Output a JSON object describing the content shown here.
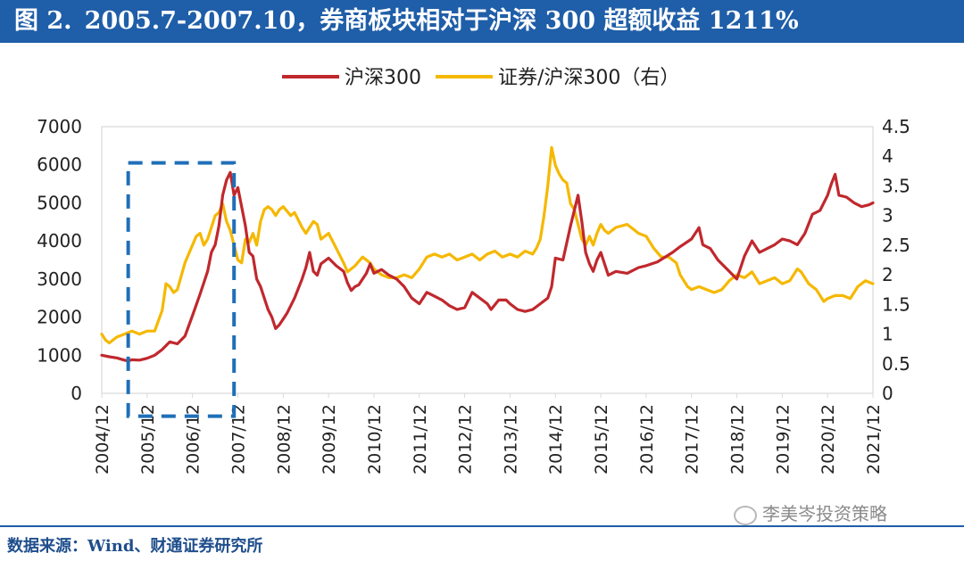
{
  "header": {
    "figure_label": "图 2.",
    "title": "2005.7-2007.10，券商板块相对于沪深 300 超额收益 1211%"
  },
  "source": "数据来源：Wind、财通证券研究所",
  "watermark": "李美岑投资策略",
  "watermark_icon": "wechat-icon",
  "colors": {
    "title_bg": "#1f5ea8",
    "series_hs300": "#c0282d",
    "series_ratio": "#f5b800",
    "highlight_box": "#1f6fb8",
    "axis": "#d9d9d9",
    "text": "#222222"
  },
  "chart_data": {
    "type": "line",
    "x_tick_labels": [
      "2004/12",
      "2005/12",
      "2006/12",
      "2007/12",
      "2008/12",
      "2009/12",
      "2010/12",
      "2011/12",
      "2012/12",
      "2013/12",
      "2014/12",
      "2015/12",
      "2016/12",
      "2017/12",
      "2018/12",
      "2019/12",
      "2020/12",
      "2021/12"
    ],
    "x_range": [
      2004.917,
      2021.917
    ],
    "y_left": {
      "ticks": [
        0,
        1000,
        2000,
        3000,
        4000,
        5000,
        6000,
        7000
      ],
      "tick_labels": [
        "0",
        "1000",
        "2000",
        "3000",
        "4000",
        "5000",
        "6000",
        "7000"
      ],
      "range": [
        0,
        7000
      ]
    },
    "y_right": {
      "ticks": [
        0,
        0.5,
        1,
        1.5,
        2,
        2.5,
        3,
        3.5,
        4,
        4.5
      ],
      "tick_labels": [
        "0",
        "0.5",
        "1",
        "1.5",
        "2",
        "2.5",
        "3",
        "3.5",
        "4",
        "4.5"
      ],
      "range": [
        0,
        4.5
      ]
    },
    "legend_position": "top-center",
    "grid": false,
    "highlight_region": {
      "x": [
        2005.5,
        2007.833
      ],
      "y_left": [
        -600,
        6050
      ]
    },
    "series": [
      {
        "name": "沪深300",
        "axis": "left",
        "points": [
          [
            2004.917,
            1000
          ],
          [
            2005.083,
            960
          ],
          [
            2005.25,
            930
          ],
          [
            2005.417,
            870
          ],
          [
            2005.5,
            850
          ],
          [
            2005.583,
            880
          ],
          [
            2005.75,
            870
          ],
          [
            2005.917,
            920
          ],
          [
            2006.083,
            1000
          ],
          [
            2006.25,
            1150
          ],
          [
            2006.417,
            1350
          ],
          [
            2006.583,
            1300
          ],
          [
            2006.75,
            1500
          ],
          [
            2006.917,
            2040
          ],
          [
            2007.083,
            2600
          ],
          [
            2007.25,
            3200
          ],
          [
            2007.333,
            3700
          ],
          [
            2007.417,
            3900
          ],
          [
            2007.5,
            4400
          ],
          [
            2007.583,
            5200
          ],
          [
            2007.667,
            5600
          ],
          [
            2007.75,
            5800
          ],
          [
            2007.833,
            5200
          ],
          [
            2007.917,
            5400
          ],
          [
            2008.0,
            4900
          ],
          [
            2008.083,
            4400
          ],
          [
            2008.167,
            3700
          ],
          [
            2008.25,
            3600
          ],
          [
            2008.333,
            3000
          ],
          [
            2008.417,
            2800
          ],
          [
            2008.5,
            2500
          ],
          [
            2008.583,
            2200
          ],
          [
            2008.667,
            2000
          ],
          [
            2008.75,
            1700
          ],
          [
            2008.833,
            1800
          ],
          [
            2008.917,
            1950
          ],
          [
            2009.0,
            2100
          ],
          [
            2009.167,
            2500
          ],
          [
            2009.333,
            3000
          ],
          [
            2009.417,
            3300
          ],
          [
            2009.5,
            3700
          ],
          [
            2009.583,
            3200
          ],
          [
            2009.667,
            3100
          ],
          [
            2009.75,
            3400
          ],
          [
            2009.917,
            3550
          ],
          [
            2010.083,
            3350
          ],
          [
            2010.25,
            3200
          ],
          [
            2010.333,
            2900
          ],
          [
            2010.417,
            2700
          ],
          [
            2010.5,
            2800
          ],
          [
            2010.583,
            2850
          ],
          [
            2010.75,
            3150
          ],
          [
            2010.833,
            3400
          ],
          [
            2010.917,
            3150
          ],
          [
            2011.083,
            3250
          ],
          [
            2011.25,
            3100
          ],
          [
            2011.417,
            3000
          ],
          [
            2011.583,
            2800
          ],
          [
            2011.75,
            2500
          ],
          [
            2011.917,
            2350
          ],
          [
            2012.083,
            2650
          ],
          [
            2012.25,
            2550
          ],
          [
            2012.417,
            2450
          ],
          [
            2012.583,
            2300
          ],
          [
            2012.75,
            2200
          ],
          [
            2012.917,
            2250
          ],
          [
            2013.083,
            2650
          ],
          [
            2013.25,
            2500
          ],
          [
            2013.417,
            2350
          ],
          [
            2013.5,
            2200
          ],
          [
            2013.667,
            2450
          ],
          [
            2013.833,
            2450
          ],
          [
            2013.917,
            2350
          ],
          [
            2014.083,
            2200
          ],
          [
            2014.25,
            2150
          ],
          [
            2014.417,
            2200
          ],
          [
            2014.583,
            2350
          ],
          [
            2014.75,
            2500
          ],
          [
            2014.833,
            2800
          ],
          [
            2014.917,
            3550
          ],
          [
            2015.083,
            3500
          ],
          [
            2015.25,
            4400
          ],
          [
            2015.417,
            5200
          ],
          [
            2015.5,
            4500
          ],
          [
            2015.583,
            3700
          ],
          [
            2015.667,
            3400
          ],
          [
            2015.75,
            3200
          ],
          [
            2015.833,
            3500
          ],
          [
            2015.917,
            3700
          ],
          [
            2016.083,
            3100
          ],
          [
            2016.25,
            3200
          ],
          [
            2016.5,
            3150
          ],
          [
            2016.75,
            3300
          ],
          [
            2016.917,
            3350
          ],
          [
            2017.167,
            3450
          ],
          [
            2017.5,
            3700
          ],
          [
            2017.667,
            3850
          ],
          [
            2017.917,
            4050
          ],
          [
            2018.083,
            4350
          ],
          [
            2018.167,
            3900
          ],
          [
            2018.333,
            3800
          ],
          [
            2018.5,
            3500
          ],
          [
            2018.75,
            3200
          ],
          [
            2018.917,
            3000
          ],
          [
            2019.083,
            3600
          ],
          [
            2019.25,
            4000
          ],
          [
            2019.417,
            3700
          ],
          [
            2019.583,
            3800
          ],
          [
            2019.75,
            3900
          ],
          [
            2019.917,
            4050
          ],
          [
            2020.083,
            4000
          ],
          [
            2020.25,
            3900
          ],
          [
            2020.417,
            4200
          ],
          [
            2020.583,
            4700
          ],
          [
            2020.75,
            4800
          ],
          [
            2020.917,
            5200
          ],
          [
            2021.0,
            5500
          ],
          [
            2021.083,
            5750
          ],
          [
            2021.167,
            5200
          ],
          [
            2021.333,
            5150
          ],
          [
            2021.5,
            5000
          ],
          [
            2021.667,
            4900
          ],
          [
            2021.833,
            4950
          ],
          [
            2021.917,
            5000
          ]
        ]
      },
      {
        "name": "证券/沪深300（右）",
        "axis": "right",
        "points": [
          [
            2004.917,
            1.0
          ],
          [
            2005.0,
            0.9
          ],
          [
            2005.083,
            0.85
          ],
          [
            2005.25,
            0.95
          ],
          [
            2005.417,
            1.0
          ],
          [
            2005.583,
            1.05
          ],
          [
            2005.75,
            1.0
          ],
          [
            2005.917,
            1.05
          ],
          [
            2006.083,
            1.05
          ],
          [
            2006.25,
            1.4
          ],
          [
            2006.333,
            1.85
          ],
          [
            2006.417,
            1.8
          ],
          [
            2006.5,
            1.7
          ],
          [
            2006.583,
            1.75
          ],
          [
            2006.75,
            2.2
          ],
          [
            2006.917,
            2.5
          ],
          [
            2007.0,
            2.65
          ],
          [
            2007.083,
            2.7
          ],
          [
            2007.167,
            2.5
          ],
          [
            2007.25,
            2.6
          ],
          [
            2007.333,
            2.8
          ],
          [
            2007.417,
            3.0
          ],
          [
            2007.5,
            3.05
          ],
          [
            2007.583,
            3.2
          ],
          [
            2007.667,
            2.9
          ],
          [
            2007.75,
            2.75
          ],
          [
            2007.833,
            2.5
          ],
          [
            2007.917,
            2.25
          ],
          [
            2008.0,
            2.2
          ],
          [
            2008.083,
            2.6
          ],
          [
            2008.167,
            2.55
          ],
          [
            2008.25,
            2.7
          ],
          [
            2008.333,
            2.5
          ],
          [
            2008.417,
            2.9
          ],
          [
            2008.5,
            3.1
          ],
          [
            2008.583,
            3.15
          ],
          [
            2008.667,
            3.1
          ],
          [
            2008.75,
            3.0
          ],
          [
            2008.833,
            3.1
          ],
          [
            2008.917,
            3.15
          ],
          [
            2009.083,
            3.0
          ],
          [
            2009.167,
            3.05
          ],
          [
            2009.333,
            2.8
          ],
          [
            2009.417,
            2.7
          ],
          [
            2009.5,
            2.8
          ],
          [
            2009.583,
            2.9
          ],
          [
            2009.667,
            2.85
          ],
          [
            2009.75,
            2.6
          ],
          [
            2009.917,
            2.7
          ],
          [
            2010.083,
            2.45
          ],
          [
            2010.25,
            2.2
          ],
          [
            2010.333,
            2.05
          ],
          [
            2010.5,
            2.15
          ],
          [
            2010.667,
            2.3
          ],
          [
            2010.833,
            2.2
          ],
          [
            2010.917,
            2.1
          ],
          [
            2011.083,
            2.0
          ],
          [
            2011.25,
            1.95
          ],
          [
            2011.417,
            1.95
          ],
          [
            2011.583,
            2.0
          ],
          [
            2011.75,
            1.95
          ],
          [
            2011.917,
            2.1
          ],
          [
            2012.083,
            2.3
          ],
          [
            2012.25,
            2.35
          ],
          [
            2012.417,
            2.3
          ],
          [
            2012.583,
            2.35
          ],
          [
            2012.75,
            2.25
          ],
          [
            2012.917,
            2.3
          ],
          [
            2013.083,
            2.35
          ],
          [
            2013.25,
            2.25
          ],
          [
            2013.417,
            2.35
          ],
          [
            2013.583,
            2.4
          ],
          [
            2013.75,
            2.3
          ],
          [
            2013.917,
            2.35
          ],
          [
            2014.083,
            2.3
          ],
          [
            2014.25,
            2.4
          ],
          [
            2014.417,
            2.35
          ],
          [
            2014.5,
            2.45
          ],
          [
            2014.583,
            2.6
          ],
          [
            2014.667,
            3.0
          ],
          [
            2014.75,
            3.5
          ],
          [
            2014.833,
            4.15
          ],
          [
            2014.917,
            3.85
          ],
          [
            2015.0,
            3.7
          ],
          [
            2015.083,
            3.6
          ],
          [
            2015.167,
            3.55
          ],
          [
            2015.25,
            3.2
          ],
          [
            2015.333,
            3.1
          ],
          [
            2015.417,
            2.85
          ],
          [
            2015.5,
            2.6
          ],
          [
            2015.583,
            2.5
          ],
          [
            2015.667,
            2.65
          ],
          [
            2015.75,
            2.5
          ],
          [
            2015.833,
            2.7
          ],
          [
            2015.917,
            2.85
          ],
          [
            2016.0,
            2.75
          ],
          [
            2016.083,
            2.7
          ],
          [
            2016.25,
            2.8
          ],
          [
            2016.5,
            2.85
          ],
          [
            2016.75,
            2.7
          ],
          [
            2016.917,
            2.65
          ],
          [
            2017.083,
            2.45
          ],
          [
            2017.25,
            2.3
          ],
          [
            2017.417,
            2.3
          ],
          [
            2017.5,
            2.25
          ],
          [
            2017.583,
            2.2
          ],
          [
            2017.667,
            2.0
          ],
          [
            2017.833,
            1.8
          ],
          [
            2017.917,
            1.75
          ],
          [
            2018.083,
            1.8
          ],
          [
            2018.25,
            1.75
          ],
          [
            2018.417,
            1.7
          ],
          [
            2018.583,
            1.75
          ],
          [
            2018.75,
            1.9
          ],
          [
            2018.917,
            2.0
          ],
          [
            2019.083,
            1.95
          ],
          [
            2019.25,
            2.05
          ],
          [
            2019.417,
            1.85
          ],
          [
            2019.583,
            1.9
          ],
          [
            2019.75,
            1.95
          ],
          [
            2019.917,
            1.85
          ],
          [
            2020.083,
            1.9
          ],
          [
            2020.25,
            2.1
          ],
          [
            2020.333,
            2.05
          ],
          [
            2020.5,
            1.85
          ],
          [
            2020.667,
            1.75
          ],
          [
            2020.833,
            1.55
          ],
          [
            2020.917,
            1.6
          ],
          [
            2021.083,
            1.65
          ],
          [
            2021.25,
            1.65
          ],
          [
            2021.417,
            1.6
          ],
          [
            2021.583,
            1.8
          ],
          [
            2021.75,
            1.9
          ],
          [
            2021.917,
            1.85
          ]
        ]
      }
    ]
  }
}
